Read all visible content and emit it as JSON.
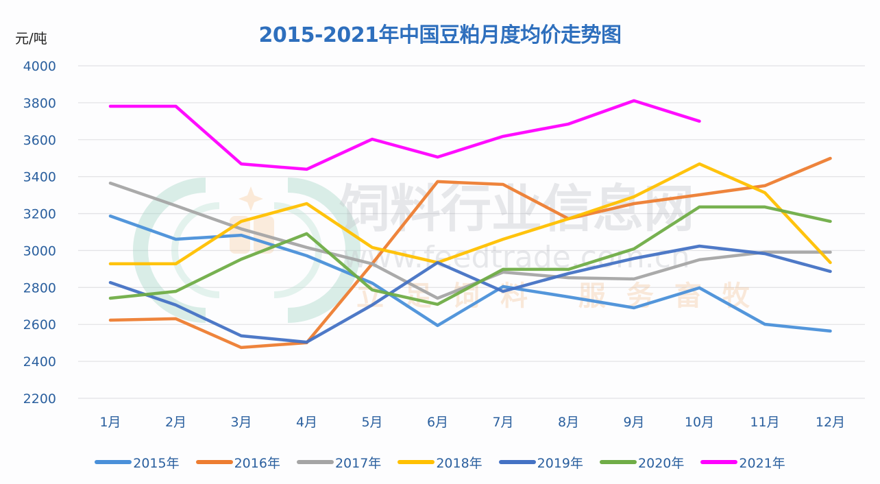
{
  "header": {
    "unit_label": "元/吨",
    "title": "2015-2021年中国豆粕月度均价走势图"
  },
  "watermark": {
    "brand_text": "饲料行业信息网",
    "url_text": "www.feedtrade.com.cn",
    "slogan_text": "立足饲料 服务畜牧"
  },
  "chart_data": {
    "type": "line",
    "title": "2015-2021年中国豆粕月度均价走势图",
    "xlabel": "",
    "ylabel": "元/吨",
    "ylim": [
      2200,
      4000
    ],
    "yticks": [
      4000,
      3800,
      3600,
      3400,
      3200,
      3000,
      2800,
      2600,
      2400,
      2200
    ],
    "grid": true,
    "legend_position": "bottom",
    "categories": [
      "1月",
      "2月",
      "3月",
      "4月",
      "5月",
      "6月",
      "7月",
      "8月",
      "9月",
      "10月",
      "11月",
      "12月"
    ],
    "series": [
      {
        "name": "2015年",
        "color": "#4a90d9",
        "values": [
          3187,
          3061,
          3083,
          2972,
          2824,
          2594,
          2805,
          2749,
          2690,
          2798,
          2601,
          2564
        ]
      },
      {
        "name": "2016年",
        "color": "#ed7d31",
        "values": [
          2623,
          2631,
          2475,
          2501,
          2928,
          3373,
          3358,
          3172,
          3254,
          3302,
          3351,
          3499
        ]
      },
      {
        "name": "2017年",
        "color": "#a5a5a5",
        "values": [
          3365,
          3243,
          3117,
          3017,
          2928,
          2742,
          2883,
          2853,
          2846,
          2950,
          2991,
          2991
        ]
      },
      {
        "name": "2018年",
        "color": "#ffc000",
        "values": [
          2928,
          2928,
          3158,
          3254,
          3017,
          2935,
          3061,
          3172,
          3291,
          3469,
          3313,
          2935
        ]
      },
      {
        "name": "2019年",
        "color": "#4472c4",
        "values": [
          2827,
          2705,
          2538,
          2504,
          2705,
          2935,
          2779,
          2876,
          2957,
          3024,
          2983,
          2887
        ]
      },
      {
        "name": "2020年",
        "color": "#70ad47",
        "values": [
          2742,
          2779,
          2953,
          3091,
          2787,
          2709,
          2898,
          2898,
          3009,
          3236,
          3236,
          3158
        ]
      },
      {
        "name": "2021年",
        "color": "#ff00ff",
        "values": [
          3781,
          3781,
          3469,
          3440,
          3603,
          3506,
          3618,
          3685,
          3811,
          3700,
          null,
          null
        ]
      }
    ]
  }
}
